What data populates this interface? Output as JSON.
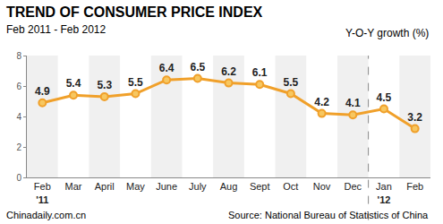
{
  "chart_data": {
    "type": "line",
    "title": "TREND OF CONSUMER PRICE INDEX",
    "subtitle": "Feb 2011 - Feb 2012",
    "y_label": "Y-O-Y growth (%)",
    "source": "Source: National Bureau of Statistics of China",
    "credit": "Chinadaily.com.cn",
    "categories": [
      "Feb",
      "Mar",
      "April",
      "May",
      "June",
      "July",
      "Aug",
      "Sept",
      "Oct",
      "Nov",
      "Dec",
      "Jan",
      "Feb"
    ],
    "year_labels": [
      "'11",
      null,
      null,
      null,
      null,
      null,
      null,
      null,
      null,
      null,
      null,
      "'12",
      null
    ],
    "values": [
      4.9,
      5.4,
      5.3,
      5.5,
      6.4,
      6.5,
      6.2,
      6.1,
      5.5,
      4.2,
      4.1,
      4.5,
      3.2
    ],
    "color": "#f0a02a",
    "marker": "circle",
    "ylim": [
      0,
      8
    ],
    "yticks": [
      0,
      2,
      4,
      6,
      8
    ],
    "grid": false,
    "data_labels": true
  }
}
